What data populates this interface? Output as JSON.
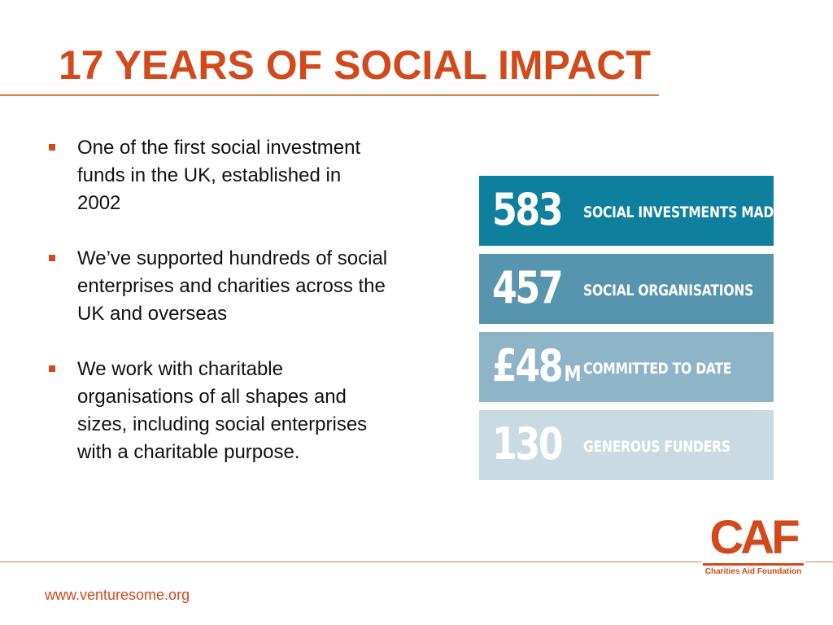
{
  "slide": {
    "title": "17 YEARS OF SOCIAL IMPACT",
    "bullets": [
      "One of the first social investment funds in the UK, established in 2002",
      "We’ve supported hundreds of social enterprises and charities across the UK and overseas",
      "We work with charitable organisations of all shapes and sizes, including social enterprises with a charitable purpose."
    ],
    "stats": [
      {
        "value": "583",
        "unit": "",
        "label": "SOCIAL INVESTMENTS MADE",
        "color": "#0e7f9d"
      },
      {
        "value": "457",
        "unit": "",
        "label": "SOCIAL ORGANISATIONS",
        "color": "#5795ae"
      },
      {
        "value": "£48",
        "unit": "M",
        "label": "COMMITTED TO DATE",
        "color": "#8eb4c8"
      },
      {
        "value": "130",
        "unit": "",
        "label": "GENEROUS FUNDERS",
        "color": "#c9dae2"
      }
    ],
    "logo": {
      "mark": "CAF",
      "name": "Charities Aid Foundation"
    },
    "footer_url": "www.venturesome.org"
  },
  "colors": {
    "accent": "#d2491c",
    "text": "#111111"
  }
}
